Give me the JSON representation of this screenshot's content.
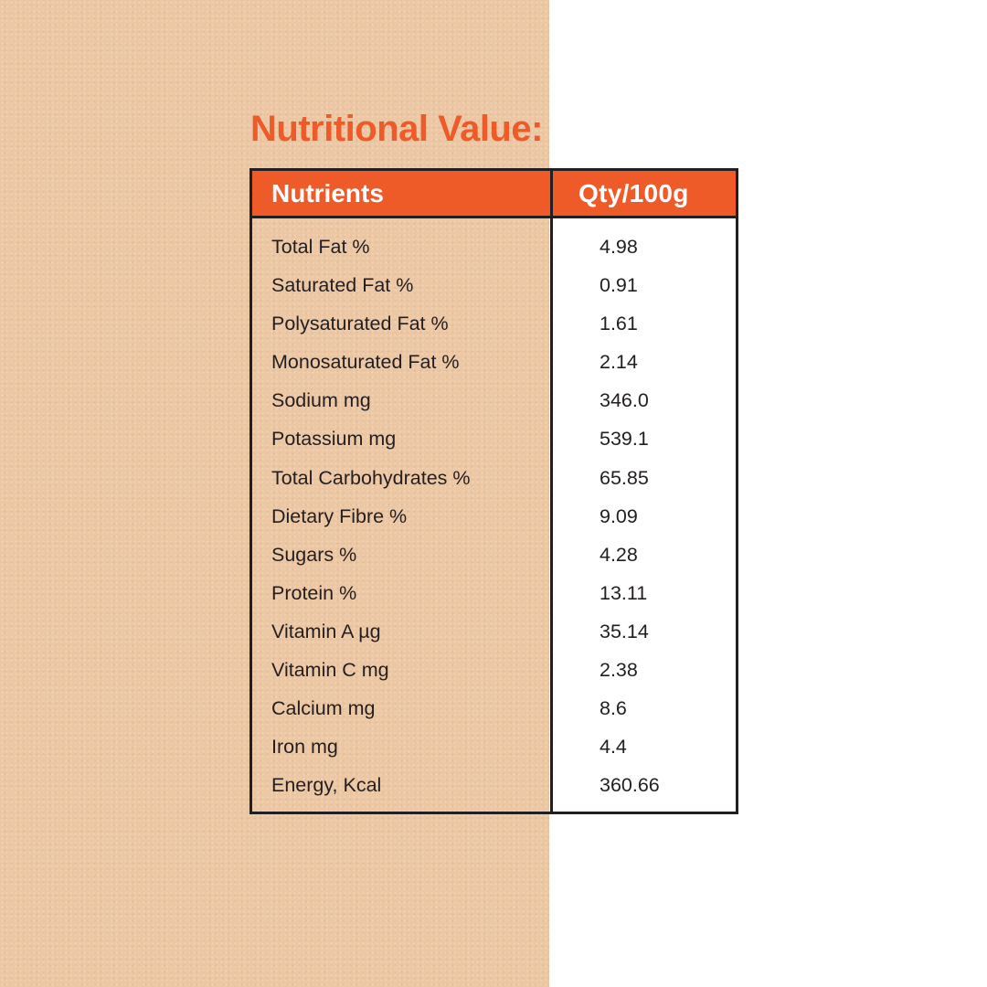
{
  "title": "Nutritional Value:",
  "colors": {
    "accent": "#ef5a29",
    "border": "#231f20",
    "background_left": "#ecc7a3",
    "background_right": "#ffffff"
  },
  "table": {
    "headers": {
      "nutrient": "Nutrients",
      "qty": "Qty/100g"
    },
    "rows": [
      {
        "name": "Total Fat %",
        "qty": "4.98"
      },
      {
        "name": "Saturated Fat %",
        "qty": "0.91"
      },
      {
        "name": "Polysaturated Fat %",
        "qty": "1.61"
      },
      {
        "name": "Monosaturated Fat %",
        "qty": "2.14"
      },
      {
        "name": "Sodium mg",
        "qty": "346.0"
      },
      {
        "name": "Potassium mg",
        "qty": "539.1"
      },
      {
        "name": "Total Carbohydrates %",
        "qty": "65.85"
      },
      {
        "name": "Dietary Fibre %",
        "qty": "9.09"
      },
      {
        "name": "Sugars %",
        "qty": "4.28"
      },
      {
        "name": "Protein %",
        "qty": "13.11"
      },
      {
        "name": "Vitamin A µg",
        "qty": "35.14"
      },
      {
        "name": "Vitamin C mg",
        "qty": "2.38"
      },
      {
        "name": "Calcium mg",
        "qty": "8.6"
      },
      {
        "name": "Iron mg",
        "qty": "4.4"
      },
      {
        "name": "Energy, Kcal",
        "qty": "360.66"
      }
    ]
  }
}
